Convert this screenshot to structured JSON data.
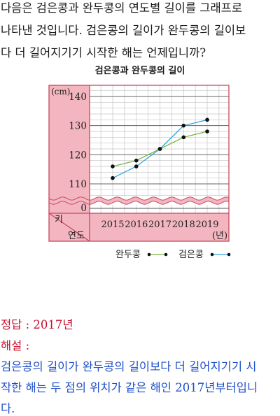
{
  "question": {
    "lines": [
      "다음은 검은콩과 완두콩의 연도별 길이를 그래프로",
      "나타낸 것입니다. 검은콩의 길이가 완두콩의 길이보",
      "다 더 길어지기기 시작한 해는 언제입니까?"
    ]
  },
  "chart_data": {
    "type": "line",
    "title": "검은콩과 완두콩의 길이",
    "categories": [
      "2015",
      "2016",
      "2017",
      "2018",
      "2019"
    ],
    "xlabel": "연도",
    "x_unit": "(년)",
    "ylabel": "키",
    "y_unit": "(cm)",
    "ylim": [
      106,
      142
    ],
    "y_ticks": [
      110,
      120,
      130,
      140
    ],
    "y_axis_break": true,
    "y_break_tick": 0,
    "grid": true,
    "legend_position": "bottom",
    "series": [
      {
        "name": "완두콩",
        "color": "#7cb342",
        "values": [
          116,
          118,
          122,
          126,
          128
        ]
      },
      {
        "name": "검은콩",
        "color": "#2ea6d9",
        "values": [
          112,
          116,
          122,
          130,
          132
        ]
      }
    ]
  },
  "answer": {
    "text": "정답 : 2017년",
    "color": "#c8102e"
  },
  "explanation": {
    "label": "해설 :",
    "lines": [
      "검은콩의 길이가 완두콩의 길이보다 더 길어지기기 시",
      "작한 해는 두 점의 위치가 같은 해인 2017년부터입니",
      "다."
    ],
    "label_color": "#c8102e",
    "color": "#1f4fc9"
  },
  "colors": {
    "frame": "#c8475c",
    "frame_fill": "#f3b6c0"
  }
}
